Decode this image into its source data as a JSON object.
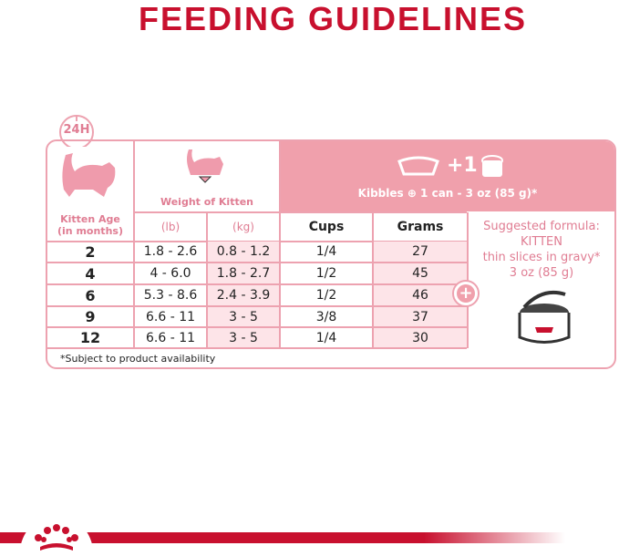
{
  "title": "FEEDING GUIDELINES",
  "badge": "24H",
  "headers": {
    "age": "Kitten Age\n(in months)",
    "weight": "Weight of Kitten",
    "lb": "(lb)",
    "kg": "(kg)",
    "cups": "Cups",
    "grams": "Grams",
    "combo_plus": "+1",
    "combo_label": "Kibbles ⊕ 1 can - 3 oz (85 g)*"
  },
  "rows": [
    {
      "age": "2",
      "lb": "1.8 - 2.6",
      "kg": "0.8 - 1.2",
      "cups": "1/4",
      "grams": "27"
    },
    {
      "age": "4",
      "lb": "4 - 6.0",
      "kg": "1.8 - 2.7",
      "cups": "1/2",
      "grams": "45"
    },
    {
      "age": "6",
      "lb": "5.3 - 8.6",
      "kg": "2.4 - 3.9",
      "cups": "1/2",
      "grams": "46"
    },
    {
      "age": "9",
      "lb": "6.6 - 11",
      "kg": "3 - 5",
      "cups": "3/8",
      "grams": "37"
    },
    {
      "age": "12",
      "lb": "6.6 - 11",
      "kg": "3 - 5",
      "cups": "1/4",
      "grams": "30"
    }
  ],
  "suggested": {
    "line1": "Suggested formula:",
    "line2": "KITTEN",
    "line3": "thin slices in gravy*",
    "line4": "3 oz (85 g)"
  },
  "footnote": "*Subject to product availability",
  "colors": {
    "brand": "#c8102e",
    "pink": "#f0a0ac",
    "light": "#fde4e8"
  }
}
